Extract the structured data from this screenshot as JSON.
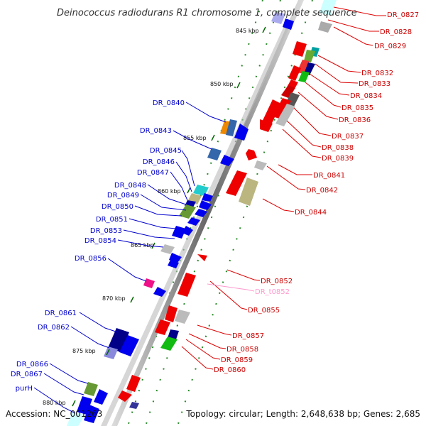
{
  "title": "Deinococcus radiodurans R1 chromosome 1, complete sequence",
  "accession": "Accession: NC_001263",
  "topology": "Topology: circular; Length: 2,648,638 bp; Genes: 2,685",
  "colors": {
    "forward_label": "#cc0000",
    "reverse_label": "#0000cc",
    "rna_label": "#ff99cc",
    "backbone": "#777777",
    "tick": "#006600"
  },
  "ticks": [
    "845 kbp",
    "850 kbp",
    "855 kbp",
    "860 kbp",
    "865 kbp",
    "870 kbp",
    "875 kbp",
    "880 kbp"
  ],
  "labels_right": [
    "DR_0827",
    "DR_0828",
    "DR_0829",
    "DR_0832",
    "DR_0833",
    "DR_0834",
    "DR_0835",
    "DR_0836",
    "DR_0837",
    "DR_0838",
    "DR_0839",
    "DR_0841",
    "DR_0842",
    "DR_0844",
    "DR_0852",
    "DR_t0852",
    "DR_0855",
    "DR_0857",
    "DR_0858",
    "DR_0859",
    "DR_0860"
  ],
  "labels_left": [
    "DR_0840",
    "DR_0843",
    "DR_0845",
    "DR_0846",
    "DR_0847",
    "DR_0848",
    "DR_0849",
    "DR_0850",
    "DR_0851",
    "DR_0853",
    "DR_0854",
    "DR_0856",
    "DR_0861",
    "DR_0862",
    "DR_0866",
    "DR_0867",
    "purH"
  ]
}
